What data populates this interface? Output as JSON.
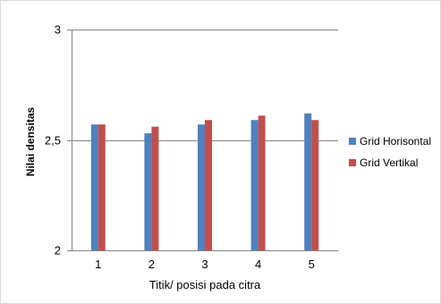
{
  "chart_data": {
    "type": "bar",
    "title": "",
    "xlabel": "Titik/ posisi pada citra",
    "ylabel": "Nilai densitas",
    "categories": [
      "1",
      "2",
      "3",
      "4",
      "5"
    ],
    "ylim": [
      2,
      3
    ],
    "yticks": [
      "2",
      "2,5",
      "3"
    ],
    "grid": true,
    "legend_position": "right",
    "series": [
      {
        "name": "Grid Horisontal",
        "color": "#4f81bd",
        "values": [
          2.57,
          2.53,
          2.57,
          2.59,
          2.62
        ]
      },
      {
        "name": "Grid Vertikal",
        "color": "#c0504d",
        "values": [
          2.57,
          2.56,
          2.59,
          2.61,
          2.59
        ]
      }
    ]
  }
}
